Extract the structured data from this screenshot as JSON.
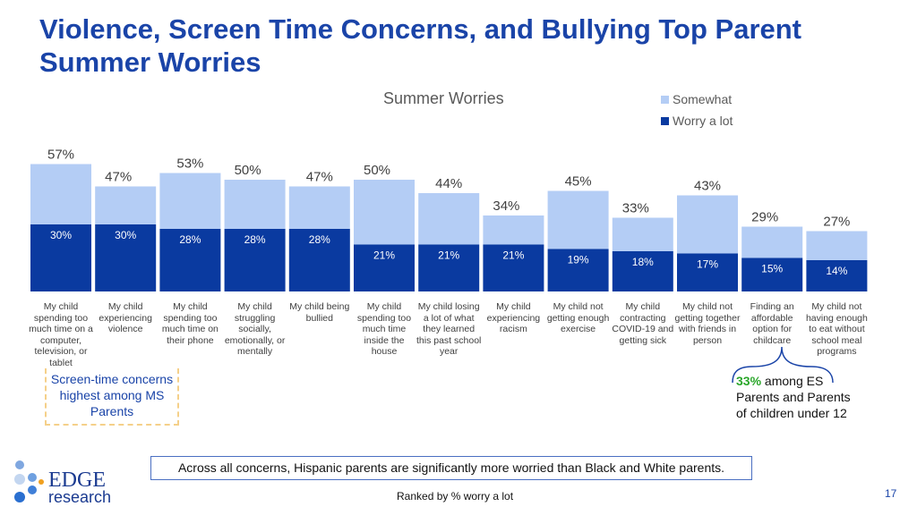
{
  "title": "Violence, Screen Time Concerns, and Bullying Top Parent Summer Worries",
  "chart_data": {
    "type": "bar",
    "stacked": true,
    "title": "Summer Worries",
    "categories": [
      "My child spending too much time on a computer, television, or tablet",
      "My child experiencing violence",
      "My child spending too much time on their phone",
      "My child struggling socially, emotionally, or mentally",
      "My child being bullied",
      "My child spending too much time inside the house",
      "My child losing a lot of what they learned this past school year",
      "My child experiencing racism",
      "My child not getting enough exercise",
      "My child contracting COVID-19 and getting sick",
      "My child not getting together with friends in person",
      "Finding an affordable option for childcare",
      "My child not having enough to eat without school meal programs"
    ],
    "totals": [
      57,
      47,
      53,
      50,
      47,
      50,
      44,
      34,
      45,
      33,
      43,
      29,
      27
    ],
    "series": [
      {
        "name": "Worry a lot",
        "color": "#0a3aa0",
        "values": [
          30,
          30,
          28,
          28,
          28,
          21,
          21,
          21,
          19,
          18,
          17,
          15,
          14
        ]
      },
      {
        "name": "Somewhat",
        "color": "#b4cdf5",
        "values": [
          27,
          17,
          25,
          22,
          19,
          29,
          23,
          13,
          26,
          15,
          26,
          14,
          13
        ]
      }
    ],
    "legend": "top-right",
    "ylim": [
      0,
      60
    ],
    "grid": false,
    "value_suffix": "%"
  },
  "legend": {
    "somewhat": "Somewhat",
    "worry": "Worry a lot"
  },
  "notes": {
    "ms": "Screen-time concerns highest among MS Parents",
    "es_pct": "33%",
    "es_text": " among ES Parents and Parents of children under 12"
  },
  "footer": "Across all concerns, Hispanic parents are significantly more worried than Black and White parents.",
  "footnote": "Ranked by % worry a lot",
  "page_number": "17",
  "logo": {
    "line1": "EDGE",
    "line2": "research"
  }
}
